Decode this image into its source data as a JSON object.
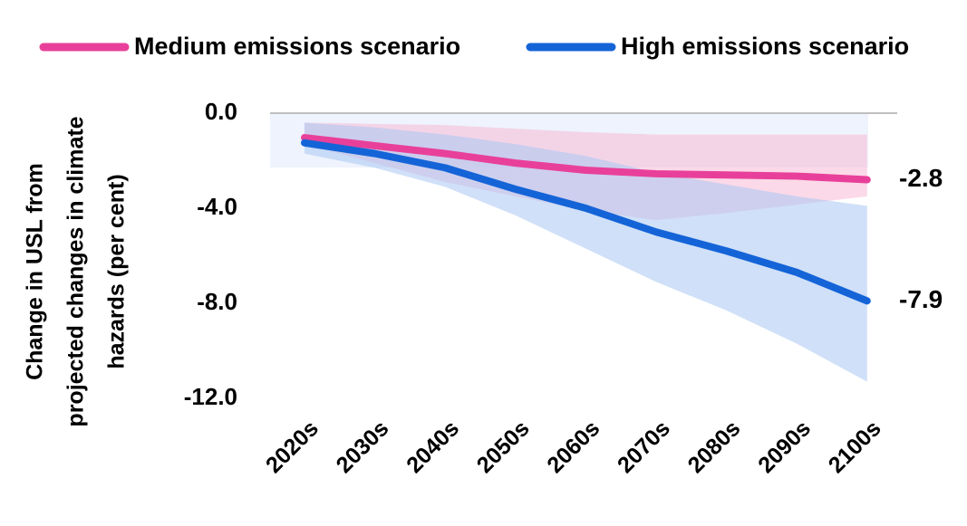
{
  "chart_data": {
    "type": "line",
    "y_label": [
      "Change in USL from",
      "projected changes in climate",
      "hazards (per cent)"
    ],
    "categories": [
      "2020s",
      "2030s",
      "2040s",
      "2050s",
      "2060s",
      "2070s",
      "2080s",
      "2090s",
      "2100s"
    ],
    "series": [
      {
        "name": "Medium emissions scenario",
        "color": "#e8409a",
        "band_color": "#f7b9d5",
        "values": [
          -1.03,
          -1.37,
          -1.7,
          -2.1,
          -2.4,
          -2.55,
          -2.6,
          -2.65,
          -2.8
        ],
        "upper": [
          -0.4,
          -0.45,
          -0.5,
          -0.65,
          -0.8,
          -0.9,
          -0.9,
          -0.9,
          -0.9
        ],
        "lower": [
          -1.3,
          -2.1,
          -2.9,
          -3.5,
          -4.1,
          -4.5,
          -4.2,
          -3.85,
          -3.5
        ]
      },
      {
        "name": "High emissions scenario",
        "color": "#1464d8",
        "band_color": "#a9c6f2",
        "values": [
          -1.25,
          -1.7,
          -2.3,
          -3.2,
          -4.0,
          -5.0,
          -5.8,
          -6.7,
          -7.9
        ],
        "upper": [
          -0.4,
          -0.6,
          -0.9,
          -1.3,
          -1.8,
          -2.5,
          -3.0,
          -3.5,
          -3.9
        ],
        "lower": [
          -1.7,
          -2.3,
          -3.1,
          -4.3,
          -5.7,
          -7.1,
          -8.3,
          -9.7,
          -11.3
        ]
      }
    ],
    "ylim": [
      -12,
      0
    ],
    "yticks": [
      {
        "value": 0,
        "label": "0.0"
      },
      {
        "value": -4,
        "label": "-4.0"
      },
      {
        "value": -8,
        "label": "-8.0"
      },
      {
        "value": -12,
        "label": "-12.0"
      }
    ],
    "grid": false
  }
}
